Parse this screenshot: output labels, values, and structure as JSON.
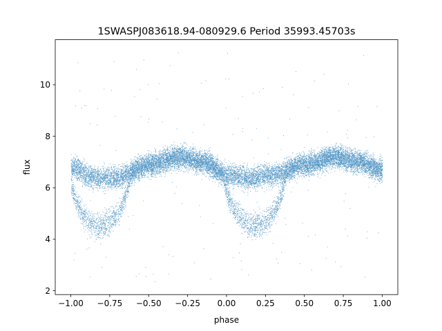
{
  "chart_data": {
    "type": "scatter",
    "title": "1SWASPJ083618.94-080929.6 Period 35993.45703s",
    "xlabel": "phase",
    "ylabel": "flux",
    "xlim": [
      -1.1,
      1.1
    ],
    "ylim": [
      1.85,
      11.75
    ],
    "x_ticks": [
      -1.0,
      -0.75,
      -0.5,
      -0.25,
      0.0,
      0.25,
      0.5,
      0.75,
      1.0
    ],
    "x_tick_labels": [
      "−1.00",
      "−0.75",
      "−0.50",
      "−0.25",
      "0.00",
      "0.25",
      "0.50",
      "0.75",
      "1.00"
    ],
    "y_ticks": [
      2,
      4,
      6,
      8,
      10
    ],
    "y_tick_labels": [
      "2",
      "4",
      "6",
      "8",
      "10"
    ],
    "grid": false,
    "legend": "none",
    "point_color": "#1f77b4",
    "point_count": 16000,
    "phase_range": [
      -1.0,
      1.0
    ],
    "main_band": {
      "description_points": [
        {
          "phase": -1.0,
          "flux": 6.8
        },
        {
          "phase": -0.85,
          "flux": 6.4
        },
        {
          "phase": -0.7,
          "flux": 6.4
        },
        {
          "phase": -0.5,
          "flux": 6.9
        },
        {
          "phase": -0.3,
          "flux": 7.2
        },
        {
          "phase": -0.15,
          "flux": 7.0
        },
        {
          "phase": 0.0,
          "flux": 6.5
        },
        {
          "phase": 0.15,
          "flux": 6.4
        },
        {
          "phase": 0.3,
          "flux": 6.5
        },
        {
          "phase": 0.5,
          "flux": 6.9
        },
        {
          "phase": 0.7,
          "flux": 7.2
        },
        {
          "phase": 0.85,
          "flux": 7.0
        },
        {
          "phase": 1.0,
          "flux": 6.7
        }
      ],
      "spread": 0.3
    },
    "dip_branch": {
      "minima": [
        {
          "phase": -0.82,
          "flux": 4.2
        },
        {
          "phase": 0.18,
          "flux": 4.2
        }
      ],
      "half_width": 0.2,
      "spread": 0.25
    },
    "outliers": {
      "flux_range": [
        2.3,
        11.3
      ]
    }
  }
}
